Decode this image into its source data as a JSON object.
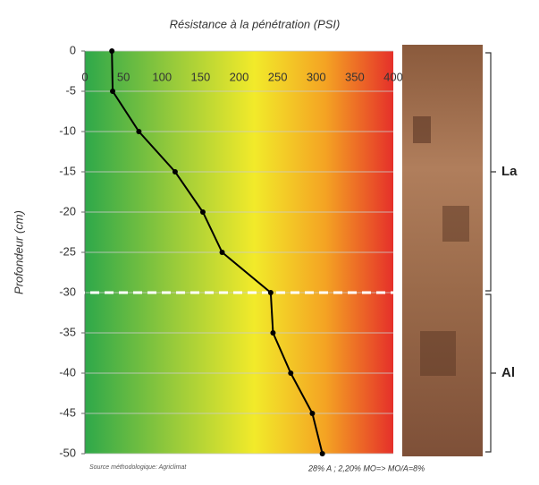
{
  "chart_data": {
    "type": "line",
    "title": "Résistance à la pénétration (PSI)",
    "y_label": "Profondeur (cm)",
    "x": [
      35,
      36,
      70,
      117,
      153,
      178,
      241,
      244,
      267,
      295,
      308
    ],
    "y": [
      0,
      -5,
      -10,
      -15,
      -20,
      -25,
      -30,
      -35,
      -40,
      -45,
      -50
    ],
    "color": "#000000",
    "xlim": [
      0,
      400
    ],
    "xticks": [
      0,
      50,
      100,
      150,
      200,
      250,
      300,
      350,
      400
    ],
    "ylim": [
      -50,
      0
    ],
    "yticks": [
      0,
      -5,
      -10,
      -15,
      -20,
      -25,
      -30,
      -35,
      -40,
      -45,
      -50
    ],
    "grid": true,
    "boundary": -30,
    "horizons": [
      {
        "label": "La",
        "top": 0,
        "bottom": -30
      },
      {
        "label": "Al",
        "top": -30,
        "bottom": -50
      }
    ],
    "source": "Source méthodologique: Agriclimat",
    "note": "28% A ; 2,20% MO=> MO/A=8%"
  }
}
